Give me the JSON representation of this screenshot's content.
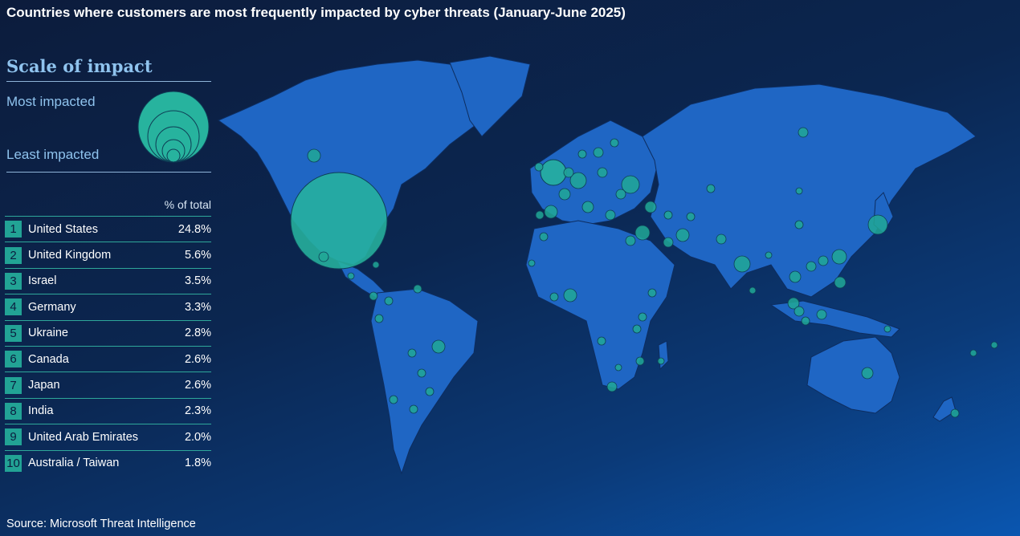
{
  "title": "Countries where customers are most frequently impacted by cyber threats  (January-June 2025)",
  "legend": {
    "heading": "Scale of impact",
    "most_label": "Most impacted",
    "least_label": "Least impacted",
    "percent_header": "% of total"
  },
  "ranking": [
    {
      "rank": "1",
      "country": "United States",
      "percent": "24.8%"
    },
    {
      "rank": "2",
      "country": "United Kingdom",
      "percent": "5.6%"
    },
    {
      "rank": "3",
      "country": "Israel",
      "percent": "3.5%"
    },
    {
      "rank": "4",
      "country": "Germany",
      "percent": "3.3%"
    },
    {
      "rank": "5",
      "country": "Ukraine",
      "percent": "2.8%"
    },
    {
      "rank": "6",
      "country": "Canada",
      "percent": "2.6%"
    },
    {
      "rank": "7",
      "country": "Japan",
      "percent": "2.6%"
    },
    {
      "rank": "8",
      "country": "India",
      "percent": "2.3%"
    },
    {
      "rank": "9",
      "country": "United Arab Emirates",
      "percent": "2.0%"
    },
    {
      "rank": "10",
      "country": "Australia / Taiwan",
      "percent": "1.8%"
    }
  ],
  "source": "Source: Microsoft Threat Intelligence",
  "colors": {
    "bubble": "#21a896",
    "land": "#1f66c4",
    "heading_accent": "#8fc3ee",
    "rank_box": "#22a395"
  }
}
